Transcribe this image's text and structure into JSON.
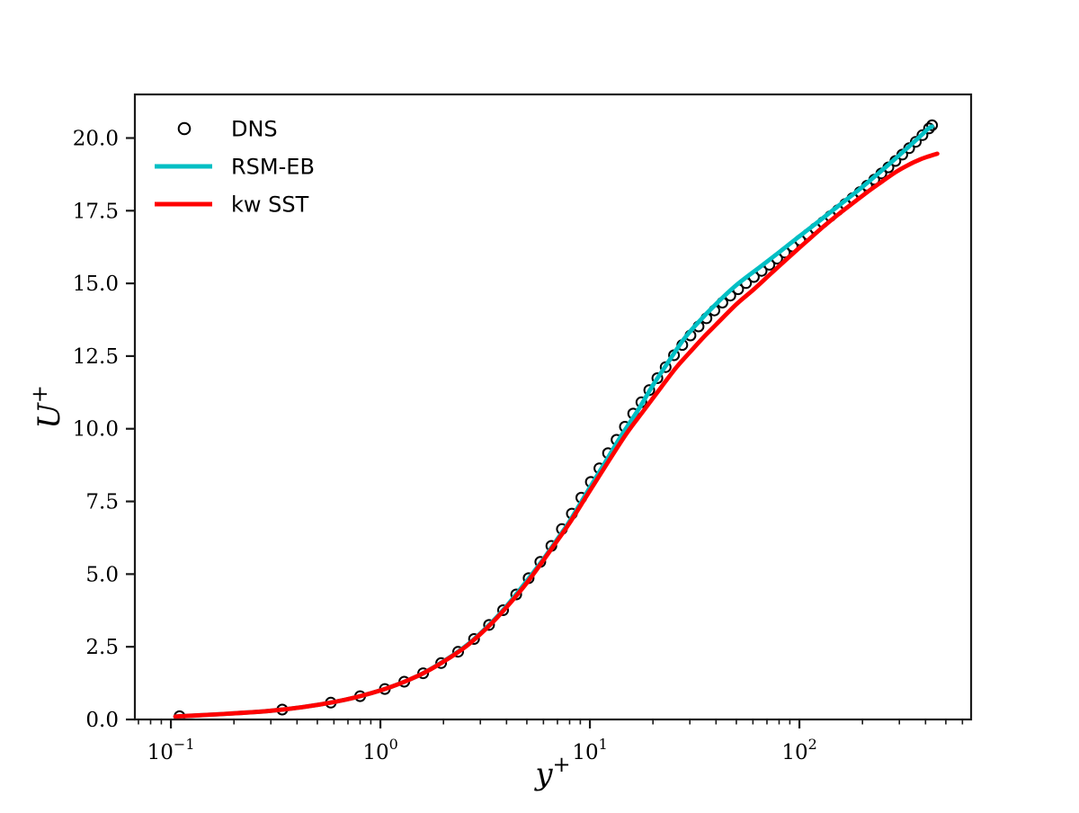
{
  "figure": {
    "background": "#ffffff",
    "spine_color": "#1a1a1a"
  },
  "chart_data": {
    "type": "line",
    "title": "",
    "xlabel": "y",
    "xlabel_sup": "+",
    "ylabel": "U",
    "ylabel_sup": "+",
    "xscale": "log",
    "yscale": "linear",
    "xlim": [
      0.0673,
      660
    ],
    "ylim": [
      0,
      21.5
    ],
    "grid": false,
    "x_major_ticks": [
      {
        "value": 0.1,
        "base": "10",
        "exponent": "−1"
      },
      {
        "value": 1,
        "base": "10",
        "exponent": "0"
      },
      {
        "value": 10,
        "base": "10",
        "exponent": "1"
      },
      {
        "value": 100,
        "base": "10",
        "exponent": "2"
      }
    ],
    "x_minor_mantissas": [
      2,
      3,
      4,
      5,
      6,
      7,
      8,
      9
    ],
    "y_ticks": [
      {
        "value": 0.0,
        "label": "0.0"
      },
      {
        "value": 2.5,
        "label": "2.5"
      },
      {
        "value": 5.0,
        "label": "5.0"
      },
      {
        "value": 7.5,
        "label": "7.5"
      },
      {
        "value": 10.0,
        "label": "10.0"
      },
      {
        "value": 12.5,
        "label": "12.5"
      },
      {
        "value": 15.0,
        "label": "15.0"
      },
      {
        "value": 17.5,
        "label": "17.5"
      },
      {
        "value": 20.0,
        "label": "20.0"
      }
    ],
    "legend": {
      "location": "upper left",
      "frame": false
    },
    "series": [
      {
        "name": "DNS",
        "type": "scatter",
        "marker": "open-circle",
        "color": "#000000",
        "points": [
          [
            0.11,
            0.11
          ],
          [
            0.34,
            0.34
          ],
          [
            0.58,
            0.58
          ],
          [
            0.8,
            0.8
          ],
          [
            1.05,
            1.05
          ],
          [
            1.3,
            1.3
          ],
          [
            1.6,
            1.59
          ],
          [
            1.95,
            1.94
          ],
          [
            2.35,
            2.33
          ],
          [
            2.8,
            2.77
          ],
          [
            3.3,
            3.25
          ],
          [
            3.85,
            3.76
          ],
          [
            4.45,
            4.3
          ],
          [
            5.1,
            4.86
          ],
          [
            5.8,
            5.42
          ],
          [
            6.55,
            5.97
          ],
          [
            7.35,
            6.55
          ],
          [
            8.2,
            7.08
          ],
          [
            9.1,
            7.63
          ],
          [
            10.1,
            8.17
          ],
          [
            11.1,
            8.64
          ],
          [
            12.2,
            9.16
          ],
          [
            13.4,
            9.62
          ],
          [
            14.7,
            10.07
          ],
          [
            16.1,
            10.52
          ],
          [
            17.6,
            10.91
          ],
          [
            19.2,
            11.33
          ],
          [
            21.0,
            11.74
          ],
          [
            23.0,
            12.12
          ],
          [
            25.2,
            12.53
          ],
          [
            27.6,
            12.88
          ],
          [
            30.2,
            13.21
          ],
          [
            33.0,
            13.52
          ],
          [
            36.0,
            13.8
          ],
          [
            39.3,
            14.07
          ],
          [
            42.9,
            14.34
          ],
          [
            46.8,
            14.58
          ],
          [
            51.0,
            14.8
          ],
          [
            55.6,
            15.01
          ],
          [
            60.6,
            15.22
          ],
          [
            66.0,
            15.43
          ],
          [
            71.9,
            15.64
          ],
          [
            78.3,
            15.85
          ],
          [
            85.2,
            16.06
          ],
          [
            92.7,
            16.27
          ],
          [
            100.8,
            16.48
          ],
          [
            109.6,
            16.68
          ],
          [
            119.1,
            16.89
          ],
          [
            129.4,
            17.1
          ],
          [
            140.5,
            17.31
          ],
          [
            152.5,
            17.52
          ],
          [
            165.4,
            17.73
          ],
          [
            179.3,
            17.93
          ],
          [
            194.3,
            18.14
          ],
          [
            210.4,
            18.36
          ],
          [
            227.7,
            18.57
          ],
          [
            246.2,
            18.78
          ],
          [
            266.0,
            18.99
          ],
          [
            287.2,
            19.21
          ],
          [
            309.8,
            19.43
          ],
          [
            333.9,
            19.65
          ],
          [
            359.5,
            19.87
          ],
          [
            386.7,
            20.1
          ],
          [
            415.5,
            20.33
          ],
          [
            430.0,
            20.44
          ]
        ]
      },
      {
        "name": "RSM-EB",
        "type": "line",
        "color": "#00bfc4",
        "points": [
          [
            0.105,
            0.1
          ],
          [
            0.3,
            0.3
          ],
          [
            0.6,
            0.6
          ],
          [
            1.0,
            1.0
          ],
          [
            1.5,
            1.49
          ],
          [
            2.0,
            2.0
          ],
          [
            2.6,
            2.57
          ],
          [
            3.3,
            3.25
          ],
          [
            4.0,
            3.9
          ],
          [
            5.0,
            4.77
          ],
          [
            6.0,
            5.52
          ],
          [
            7.0,
            6.21
          ],
          [
            8.0,
            6.82
          ],
          [
            10.0,
            7.98
          ],
          [
            12.0,
            8.92
          ],
          [
            14.0,
            9.72
          ],
          [
            17.0,
            10.65
          ],
          [
            20.0,
            11.5
          ],
          [
            24.0,
            12.36
          ],
          [
            28.0,
            13.07
          ],
          [
            33.0,
            13.67
          ],
          [
            40.0,
            14.29
          ],
          [
            50.0,
            14.94
          ],
          [
            65.0,
            15.57
          ],
          [
            80.0,
            16.07
          ],
          [
            100.0,
            16.62
          ],
          [
            125.0,
            17.16
          ],
          [
            155.0,
            17.69
          ],
          [
            190.0,
            18.19
          ],
          [
            230.0,
            18.69
          ],
          [
            280.0,
            19.22
          ],
          [
            330.0,
            19.68
          ],
          [
            380.0,
            20.08
          ],
          [
            410.0,
            20.31
          ],
          [
            430.0,
            20.4
          ]
        ]
      },
      {
        "name": "kw SST",
        "type": "line",
        "color": "#ff0000",
        "points": [
          [
            0.105,
            0.1
          ],
          [
            0.3,
            0.3
          ],
          [
            0.6,
            0.6
          ],
          [
            1.0,
            1.0
          ],
          [
            1.5,
            1.49
          ],
          [
            2.0,
            1.99
          ],
          [
            2.6,
            2.55
          ],
          [
            3.3,
            3.22
          ],
          [
            4.0,
            3.86
          ],
          [
            5.0,
            4.7
          ],
          [
            6.0,
            5.48
          ],
          [
            7.0,
            6.16
          ],
          [
            8.0,
            6.76
          ],
          [
            10.0,
            7.87
          ],
          [
            12.0,
            8.77
          ],
          [
            15.0,
            9.85
          ],
          [
            18.0,
            10.61
          ],
          [
            22.0,
            11.45
          ],
          [
            26.0,
            12.13
          ],
          [
            30.0,
            12.63
          ],
          [
            35.0,
            13.16
          ],
          [
            40.0,
            13.58
          ],
          [
            50.0,
            14.28
          ],
          [
            60.0,
            14.77
          ],
          [
            75.0,
            15.41
          ],
          [
            90.0,
            15.93
          ],
          [
            110.0,
            16.49
          ],
          [
            130.0,
            16.95
          ],
          [
            155.0,
            17.4
          ],
          [
            180.0,
            17.76
          ],
          [
            210.0,
            18.13
          ],
          [
            250.0,
            18.52
          ],
          [
            290.0,
            18.84
          ],
          [
            330.0,
            19.07
          ],
          [
            370.0,
            19.24
          ],
          [
            410.0,
            19.36
          ],
          [
            440.0,
            19.43
          ],
          [
            455.0,
            19.46
          ]
        ]
      }
    ]
  }
}
